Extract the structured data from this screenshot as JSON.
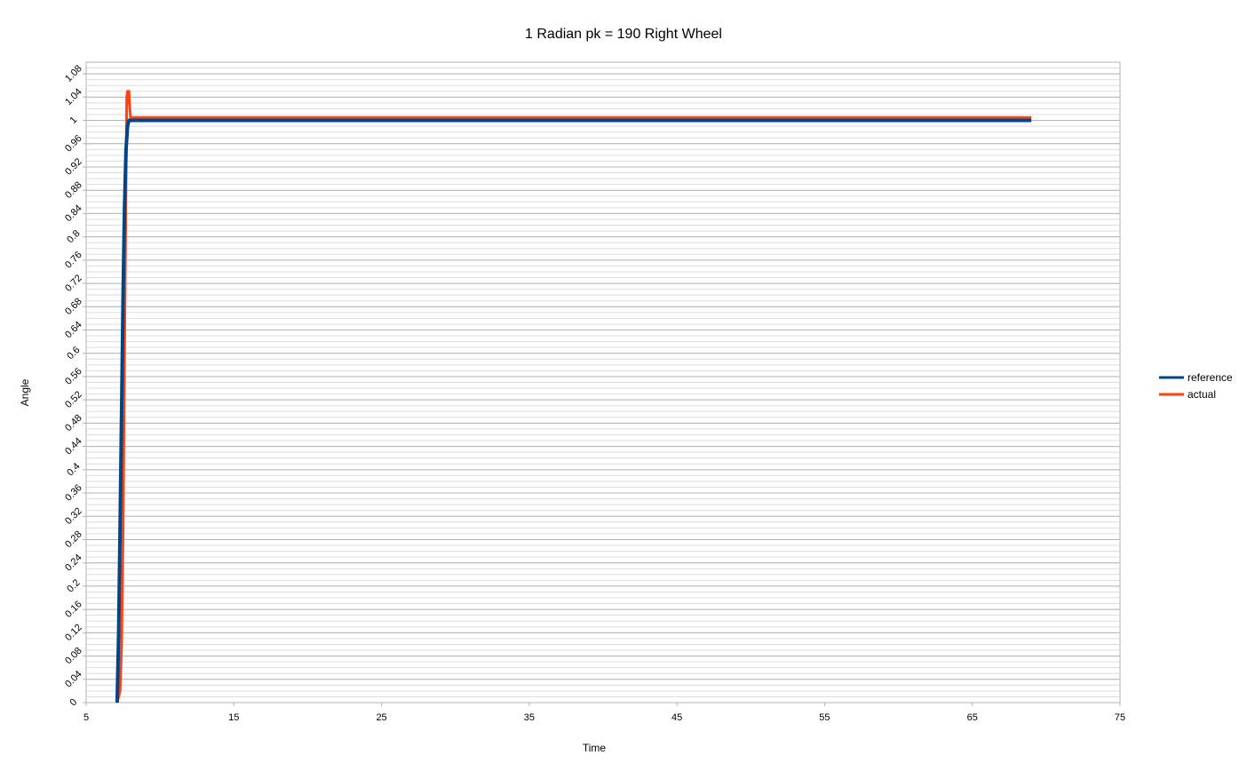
{
  "chart_data": {
    "type": "line",
    "title": "1 Radian pk = 190 Right Wheel",
    "xlabel": "Time",
    "ylabel": "Angle",
    "xlim": [
      5,
      75
    ],
    "ylim": [
      0,
      1.1
    ],
    "x_ticks": [
      5,
      15,
      25,
      35,
      45,
      55,
      65,
      75
    ],
    "y_ticks": [
      0,
      0.04,
      0.08,
      0.12,
      0.16,
      0.2,
      0.24,
      0.28,
      0.32,
      0.36,
      0.4,
      0.44,
      0.48,
      0.52,
      0.56,
      0.6,
      0.64,
      0.68,
      0.72,
      0.76,
      0.8,
      0.84,
      0.88,
      0.92,
      0.96,
      1,
      1.04,
      1.08
    ],
    "y_tick_labels": [
      "0",
      "0.04",
      "0.08",
      "0.12",
      "0.16",
      "0.2",
      "0.24",
      "0.28",
      "0.32",
      "0.36",
      "0.4",
      "0.44",
      "0.48",
      "0.52",
      "0.56",
      "0.6",
      "0.64",
      "0.68",
      "0.72",
      "0.76",
      "0.8",
      "0.84",
      "0.88",
      "0.92",
      "0.96",
      "1",
      "1.04",
      "1.08"
    ],
    "minor_grid_step": 0.01,
    "grid": true,
    "legend": "right",
    "series": [
      {
        "name": "reference",
        "color": "#004586",
        "x": [
          7.1,
          7.2,
          7.3,
          7.4,
          7.5,
          7.6,
          7.7,
          7.8,
          7.9,
          69
        ],
        "y": [
          0,
          0.12,
          0.3,
          0.5,
          0.7,
          0.85,
          0.95,
          0.99,
          1.0,
          1.0
        ]
      },
      {
        "name": "actual",
        "color": "#ff420e",
        "x": [
          7.1,
          7.3,
          7.4,
          7.5,
          7.6,
          7.7,
          7.75,
          7.8,
          7.85,
          7.9,
          7.95,
          8.0,
          69
        ],
        "y": [
          0,
          0.02,
          0.1,
          0.3,
          0.6,
          0.9,
          1.04,
          1.05,
          1.03,
          1.05,
          1.02,
          1.005,
          1.005
        ]
      }
    ]
  }
}
